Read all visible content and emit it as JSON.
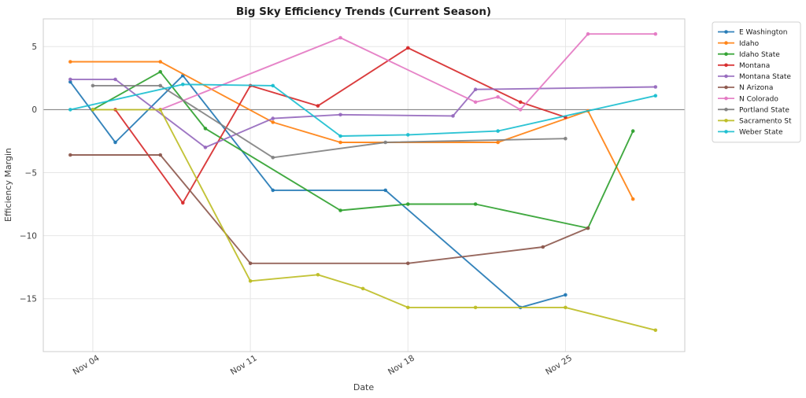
{
  "chart_data": {
    "type": "line",
    "title": "Big Sky Efficiency Trends (Current Season)",
    "xlabel": "Date",
    "ylabel": "Efficiency Margin",
    "x_unit": "day of November",
    "x_ticks": [
      {
        "day": 4,
        "label": "Nov 04"
      },
      {
        "day": 11,
        "label": "Nov 11"
      },
      {
        "day": 18,
        "label": "Nov 18"
      },
      {
        "day": 25,
        "label": "Nov 25"
      }
    ],
    "y_ticks": [
      5,
      0,
      -5,
      -10,
      -15
    ],
    "xlim_days": [
      1.8,
      30.3
    ],
    "ylim": [
      -19.2,
      7.2
    ],
    "grid": true,
    "zero_line": true,
    "legend_position": "outside-top-right",
    "style": {
      "grid_color": "#e6e6e6",
      "spine_color": "#cccccc",
      "zero_line_color": "#777777",
      "background": "#ffffff",
      "line_width": 1.9,
      "marker_radius": 2.3,
      "line_opacity": 0.9
    },
    "series": [
      {
        "name": "E Washington",
        "color": "#1f77b4",
        "points": [
          [
            3,
            2.2
          ],
          [
            5,
            -2.6
          ],
          [
            8,
            2.7
          ],
          [
            12,
            -6.4
          ],
          [
            17,
            -6.4
          ],
          [
            23,
            -15.7
          ],
          [
            25,
            -14.7
          ]
        ]
      },
      {
        "name": "Idaho",
        "color": "#ff7f0e",
        "points": [
          [
            3,
            3.8
          ],
          [
            7,
            3.8
          ],
          [
            12,
            -1.0
          ],
          [
            15,
            -2.6
          ],
          [
            22,
            -2.6
          ],
          [
            26,
            -0.1
          ],
          [
            28,
            -7.1
          ]
        ]
      },
      {
        "name": "Idaho State",
        "color": "#2ca02c",
        "points": [
          [
            4,
            0.0
          ],
          [
            7,
            3.0
          ],
          [
            9,
            -1.5
          ],
          [
            15,
            -8.0
          ],
          [
            18,
            -7.5
          ],
          [
            21,
            -7.5
          ],
          [
            26,
            -9.4
          ],
          [
            28,
            -1.7
          ]
        ]
      },
      {
        "name": "Montana",
        "color": "#d62728",
        "points": [
          [
            5,
            0.0
          ],
          [
            8,
            -7.4
          ],
          [
            11,
            1.9
          ],
          [
            14,
            0.3
          ],
          [
            18,
            4.9
          ],
          [
            23,
            0.6
          ],
          [
            25,
            -0.6
          ]
        ]
      },
      {
        "name": "Montana State",
        "color": "#9467bd",
        "points": [
          [
            3,
            2.4
          ],
          [
            5,
            2.4
          ],
          [
            9,
            -3.0
          ],
          [
            12,
            -0.7
          ],
          [
            15,
            -0.4
          ],
          [
            20,
            -0.5
          ],
          [
            21,
            1.6
          ],
          [
            29,
            1.8
          ]
        ]
      },
      {
        "name": "N Arizona",
        "color": "#8c564b",
        "points": [
          [
            3,
            -3.6
          ],
          [
            7,
            -3.6
          ],
          [
            11,
            -12.2
          ],
          [
            18,
            -12.2
          ],
          [
            24,
            -10.9
          ],
          [
            26,
            -9.4
          ]
        ]
      },
      {
        "name": "N Colorado",
        "color": "#e377c2",
        "points": [
          [
            7,
            0.0
          ],
          [
            15,
            5.7
          ],
          [
            21,
            0.6
          ],
          [
            22,
            1.0
          ],
          [
            23,
            0.0
          ],
          [
            26,
            6.0
          ],
          [
            29,
            6.0
          ]
        ]
      },
      {
        "name": "Portland State",
        "color": "#7f7f7f",
        "points": [
          [
            4,
            1.9
          ],
          [
            7,
            1.9
          ],
          [
            12,
            -3.8
          ],
          [
            17,
            -2.6
          ],
          [
            25,
            -2.3
          ]
        ]
      },
      {
        "name": "Sacramento St",
        "color": "#bcbd22",
        "points": [
          [
            4,
            0.0
          ],
          [
            7,
            0.0
          ],
          [
            11,
            -13.6
          ],
          [
            14,
            -13.1
          ],
          [
            16,
            -14.2
          ],
          [
            18,
            -15.7
          ],
          [
            21,
            -15.7
          ],
          [
            25,
            -15.7
          ],
          [
            29,
            -17.5
          ]
        ]
      },
      {
        "name": "Weber State",
        "color": "#17becf",
        "points": [
          [
            3,
            0.0
          ],
          [
            8,
            2.0
          ],
          [
            12,
            1.9
          ],
          [
            15,
            -2.1
          ],
          [
            18,
            -2.0
          ],
          [
            22,
            -1.7
          ],
          [
            29,
            1.1
          ]
        ]
      }
    ]
  }
}
